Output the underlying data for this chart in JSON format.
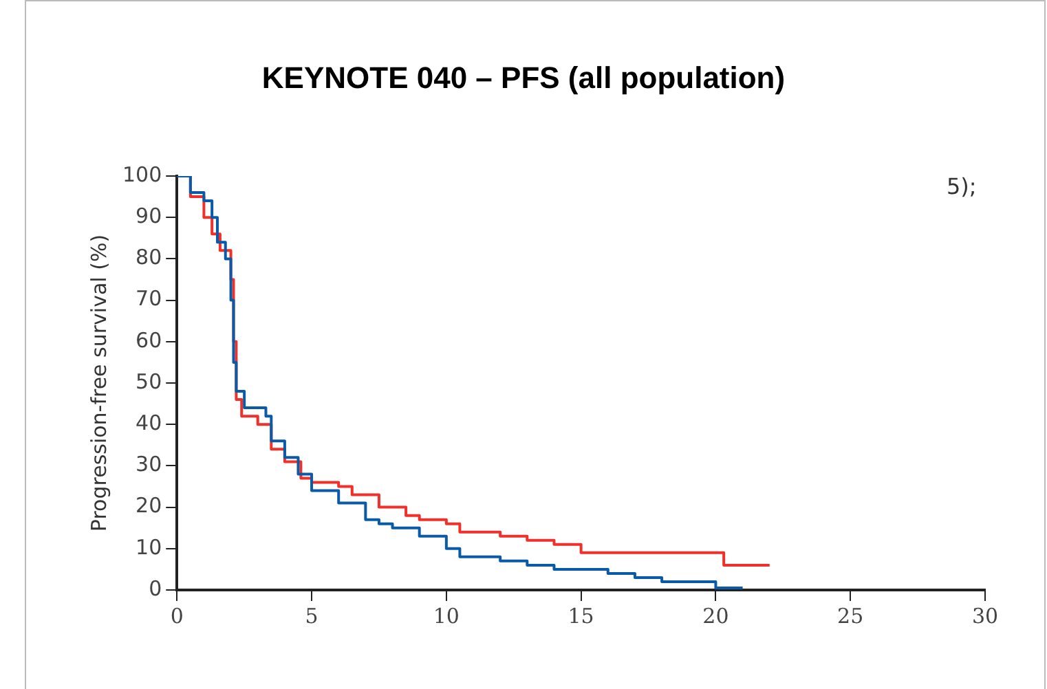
{
  "chart_data": {
    "type": "step",
    "title": "KEYNOTE 040 – PFS (all population)",
    "ylabel": "Progression-free survival (%)",
    "annotations": [
      "5);"
    ],
    "xlim": [
      0,
      30
    ],
    "xticks": [
      0,
      5,
      10,
      15,
      20,
      25,
      30
    ],
    "ylim": [
      0,
      100
    ],
    "yticks": [
      0,
      10,
      20,
      30,
      40,
      50,
      60,
      70,
      80,
      90,
      100
    ],
    "grid": false,
    "legend": false,
    "series": [
      {
        "color": "#0a5aa8",
        "x": [
          0,
          0.5,
          1,
          1.3,
          1.5,
          1.8,
          2,
          2.1,
          2.2,
          2.5,
          3.3,
          3.5,
          4,
          4.5,
          5,
          6,
          7,
          7.5,
          8,
          9,
          10,
          10.5,
          12,
          13,
          14,
          16,
          17,
          18,
          20,
          21
        ],
        "values": [
          100,
          96,
          94,
          90,
          84,
          80,
          70,
          55,
          48,
          44,
          42,
          36,
          32,
          28,
          24,
          21,
          17,
          16,
          15,
          13,
          10,
          8,
          7,
          6,
          5,
          4,
          3,
          2,
          0.5,
          0.5
        ]
      },
      {
        "color": "#f0302a",
        "x": [
          0,
          0.5,
          1,
          1.3,
          1.6,
          2,
          2.1,
          2.2,
          2.4,
          3,
          3.5,
          4,
          4.6,
          5,
          6,
          6.5,
          7.5,
          8.5,
          9,
          10,
          10.5,
          12,
          13,
          14,
          15,
          20,
          20.3,
          22
        ],
        "values": [
          100,
          95,
          90,
          86,
          82,
          75,
          60,
          46,
          42,
          40,
          34,
          31,
          27,
          26,
          25,
          23,
          20,
          18,
          17,
          16,
          14,
          13,
          12,
          11,
          9,
          9,
          6,
          6
        ]
      }
    ]
  }
}
